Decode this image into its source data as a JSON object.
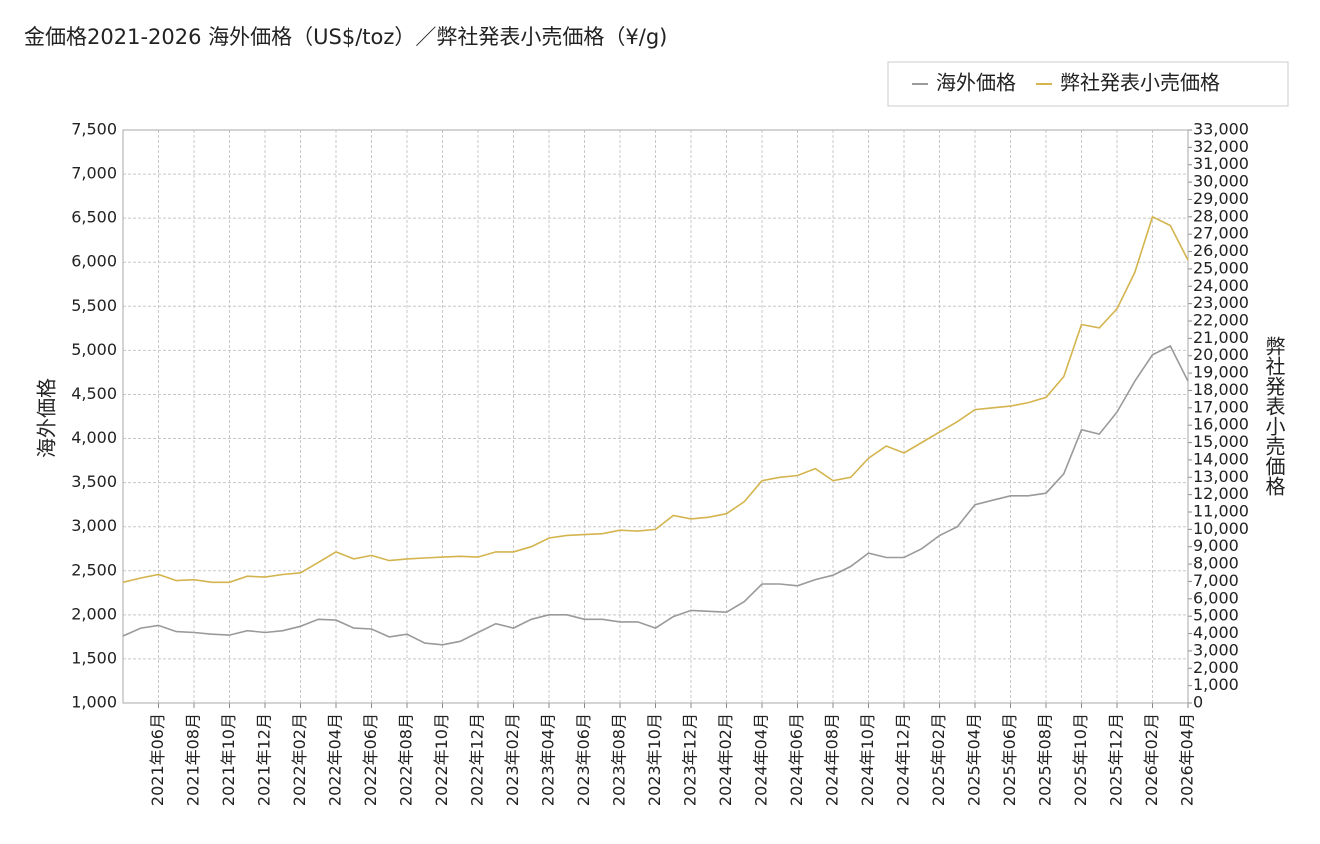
{
  "chart_data": {
    "type": "line",
    "title": "金価格2021-2026 海外価格（US$/toz）／弊社発表小売価格（¥/g)",
    "y_label": "海外価格",
    "y2_label": "弊社発表小売価格",
    "grid": true,
    "legend": "top-right",
    "xlim": [
      "2021-04",
      "2026-04"
    ],
    "xticks": [
      {
        "value": "2021-06",
        "label": "2021年06月"
      },
      {
        "value": "2021-08",
        "label": "2021年08月"
      },
      {
        "value": "2021-10",
        "label": "2021年10月"
      },
      {
        "value": "2021-12",
        "label": "2021年12月"
      },
      {
        "value": "2022-02",
        "label": "2022年02月"
      },
      {
        "value": "2022-04",
        "label": "2022年04月"
      },
      {
        "value": "2022-06",
        "label": "2022年06月"
      },
      {
        "value": "2022-08",
        "label": "2022年08月"
      },
      {
        "value": "2022-10",
        "label": "2022年10月"
      },
      {
        "value": "2022-12",
        "label": "2022年12月"
      },
      {
        "value": "2023-02",
        "label": "2023年02月"
      },
      {
        "value": "2023-04",
        "label": "2023年04月"
      },
      {
        "value": "2023-06",
        "label": "2023年06月"
      },
      {
        "value": "2023-08",
        "label": "2023年08月"
      },
      {
        "value": "2023-10",
        "label": "2023年10月"
      },
      {
        "value": "2023-12",
        "label": "2023年12月"
      },
      {
        "value": "2024-02",
        "label": "2024年02月"
      },
      {
        "value": "2024-04",
        "label": "2024年04月"
      },
      {
        "value": "2024-06",
        "label": "2024年06月"
      },
      {
        "value": "2024-08",
        "label": "2024年08月"
      },
      {
        "value": "2024-10",
        "label": "2024年10月"
      },
      {
        "value": "2024-12",
        "label": "2024年12月"
      },
      {
        "value": "2025-02",
        "label": "2025年02月"
      },
      {
        "value": "2025-04",
        "label": "2025年04月"
      },
      {
        "value": "2025-06",
        "label": "2025年06月"
      },
      {
        "value": "2025-08",
        "label": "2025年08月"
      },
      {
        "value": "2025-10",
        "label": "2025年10月"
      },
      {
        "value": "2025-12",
        "label": "2025年12月"
      },
      {
        "value": "2026-02",
        "label": "2026年02月"
      },
      {
        "value": "2026-04",
        "label": "2026年04月"
      }
    ],
    "ylim": [
      1000,
      7500
    ],
    "yticks": [
      {
        "value": 1000,
        "label": "1,000"
      },
      {
        "value": 1500,
        "label": "1,500"
      },
      {
        "value": 2000,
        "label": "2,000"
      },
      {
        "value": 2500,
        "label": "2,500"
      },
      {
        "value": 3000,
        "label": "3,000"
      },
      {
        "value": 3500,
        "label": "3,500"
      },
      {
        "value": 4000,
        "label": "4,000"
      },
      {
        "value": 4500,
        "label": "4,500"
      },
      {
        "value": 5000,
        "label": "5,000"
      },
      {
        "value": 5500,
        "label": "5,500"
      },
      {
        "value": 6000,
        "label": "6,000"
      },
      {
        "value": 6500,
        "label": "6,500"
      },
      {
        "value": 7000,
        "label": "7,000"
      },
      {
        "value": 7500,
        "label": "7,500"
      }
    ],
    "y2lim": [
      0,
      33000
    ],
    "y2ticks": [
      0,
      {
        "value": 1000,
        "label": "1,000"
      },
      {
        "value": 2000,
        "label": "2,000"
      },
      {
        "value": 3000,
        "label": "3,000"
      },
      {
        "value": 4000,
        "label": "4,000"
      },
      {
        "value": 5000,
        "label": "5,000"
      },
      {
        "value": 6000,
        "label": "6,000"
      },
      {
        "value": 7000,
        "label": "7,000"
      },
      {
        "value": 8000,
        "label": "8,000"
      },
      {
        "value": 9000,
        "label": "9,000"
      },
      {
        "value": 10000,
        "label": "10,000"
      },
      {
        "value": 11000,
        "label": "11,000"
      },
      {
        "value": 12000,
        "label": "12,000"
      },
      {
        "value": 13000,
        "label": "13,000"
      },
      {
        "value": 14000,
        "label": "14,000"
      },
      {
        "value": 15000,
        "label": "15,000"
      },
      {
        "value": 16000,
        "label": "16,000"
      },
      {
        "value": 17000,
        "label": "17,000"
      },
      {
        "value": 18000,
        "label": "18,000"
      },
      {
        "value": 19000,
        "label": "19,000"
      },
      {
        "value": 20000,
        "label": "20,000"
      },
      {
        "value": 21000,
        "label": "21,000"
      },
      {
        "value": 22000,
        "label": "22,000"
      },
      {
        "value": 23000,
        "label": "23,000"
      },
      {
        "value": 24000,
        "label": "24,000"
      },
      {
        "value": 25000,
        "label": "25,000"
      },
      {
        "value": 26000,
        "label": "26,000"
      },
      {
        "value": 27000,
        "label": "27,000"
      },
      {
        "value": 28000,
        "label": "28,000"
      },
      {
        "value": 29000,
        "label": "29,000"
      },
      {
        "value": 30000,
        "label": "30,000"
      },
      {
        "value": 31000,
        "label": "31,000"
      },
      {
        "value": 32000,
        "label": "32,000"
      },
      {
        "value": 33000,
        "label": "33,000"
      }
    ],
    "x": [
      "2021-04",
      "2021-05",
      "2021-06",
      "2021-07",
      "2021-08",
      "2021-09",
      "2021-10",
      "2021-11",
      "2021-12",
      "2022-01",
      "2022-02",
      "2022-03",
      "2022-04",
      "2022-05",
      "2022-06",
      "2022-07",
      "2022-08",
      "2022-09",
      "2022-10",
      "2022-11",
      "2022-12",
      "2023-01",
      "2023-02",
      "2023-03",
      "2023-04",
      "2023-05",
      "2023-06",
      "2023-07",
      "2023-08",
      "2023-09",
      "2023-10",
      "2023-11",
      "2023-12",
      "2024-01",
      "2024-02",
      "2024-03",
      "2024-04",
      "2024-05",
      "2024-06",
      "2024-07",
      "2024-08",
      "2024-09",
      "2024-10",
      "2024-11",
      "2024-12",
      "2025-01",
      "2025-02",
      "2025-03",
      "2025-04",
      "2025-05",
      "2025-06",
      "2025-07",
      "2025-08",
      "2025-09",
      "2025-10",
      "2025-11",
      "2025-12",
      "2026-01",
      "2026-02",
      "2026-03",
      "2026-04"
    ],
    "series": [
      {
        "name": "海外価格",
        "color": "#9a9a9a",
        "axis": "y",
        "values": [
          1760,
          1850,
          1880,
          1810,
          1800,
          1780,
          1770,
          1820,
          1800,
          1820,
          1870,
          1950,
          1940,
          1850,
          1840,
          1750,
          1780,
          1680,
          1660,
          1700,
          1800,
          1900,
          1850,
          1950,
          2000,
          2000,
          1950,
          1950,
          1920,
          1920,
          1850,
          1980,
          2050,
          2040,
          2030,
          2150,
          2350,
          2350,
          2330,
          2400,
          2450,
          2550,
          2700,
          2650,
          2650,
          2750,
          2900,
          3000,
          3250,
          3300,
          3350,
          3350,
          3380,
          3600,
          4100,
          4050,
          4300,
          4650,
          4950,
          5050,
          4650
        ]
      },
      {
        "name": "弊社発表小売価格",
        "color": "#d4b44e",
        "axis": "y2",
        "values": [
          6950,
          7200,
          7400,
          7050,
          7100,
          6950,
          6950,
          7300,
          7250,
          7400,
          7500,
          8100,
          8700,
          8300,
          8500,
          8200,
          8300,
          8350,
          8400,
          8450,
          8400,
          8700,
          8700,
          9000,
          9500,
          9650,
          9700,
          9750,
          9950,
          9900,
          10000,
          10800,
          10600,
          10700,
          10900,
          11600,
          12800,
          13000,
          13100,
          13500,
          12800,
          13000,
          14100,
          14800,
          14400,
          15000,
          15600,
          16200,
          16900,
          17000,
          17100,
          17300,
          17600,
          18800,
          21800,
          21600,
          22700,
          24800,
          28000,
          27500,
          25500
        ]
      }
    ]
  }
}
